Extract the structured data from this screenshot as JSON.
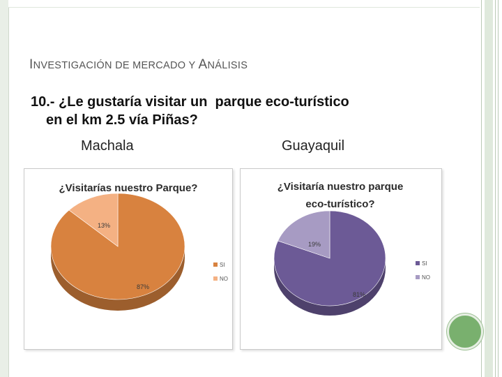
{
  "slide": {
    "title_parts": [
      "I",
      "NVESTIGACIÓN DE MERCADO Y ",
      "A",
      "NÁLISIS"
    ],
    "question_line1": "10.- ¿Le gustaría visitar un  parque eco-turístico",
    "question_line2": "en el km 2.5 vía Piñas?",
    "city_left": "Machala",
    "city_right": "Guayaquil"
  },
  "colors": {
    "machala_si": "#d8823f",
    "machala_no": "#f4b183",
    "guayaquil_si": "#6c5a96",
    "guayaquil_no": "#a79bc3",
    "accent_green": "#79b06e"
  },
  "chart_data": [
    {
      "type": "pie",
      "title_lines": [
        "¿Visitarías nuestro Parque?"
      ],
      "categories": [
        "SI",
        "NO"
      ],
      "values": [
        87,
        13
      ],
      "labels": [
        "87%",
        "13%"
      ],
      "legend": [
        "SI",
        "NO"
      ],
      "legend_position": "right"
    },
    {
      "type": "pie",
      "title_lines": [
        "¿Visitaría nuestro parque",
        "eco-turístico?"
      ],
      "categories": [
        "SI",
        "NO"
      ],
      "values": [
        81,
        19
      ],
      "labels": [
        "81%",
        "19%"
      ],
      "legend": [
        "SI",
        "NO"
      ],
      "legend_position": "right"
    }
  ]
}
